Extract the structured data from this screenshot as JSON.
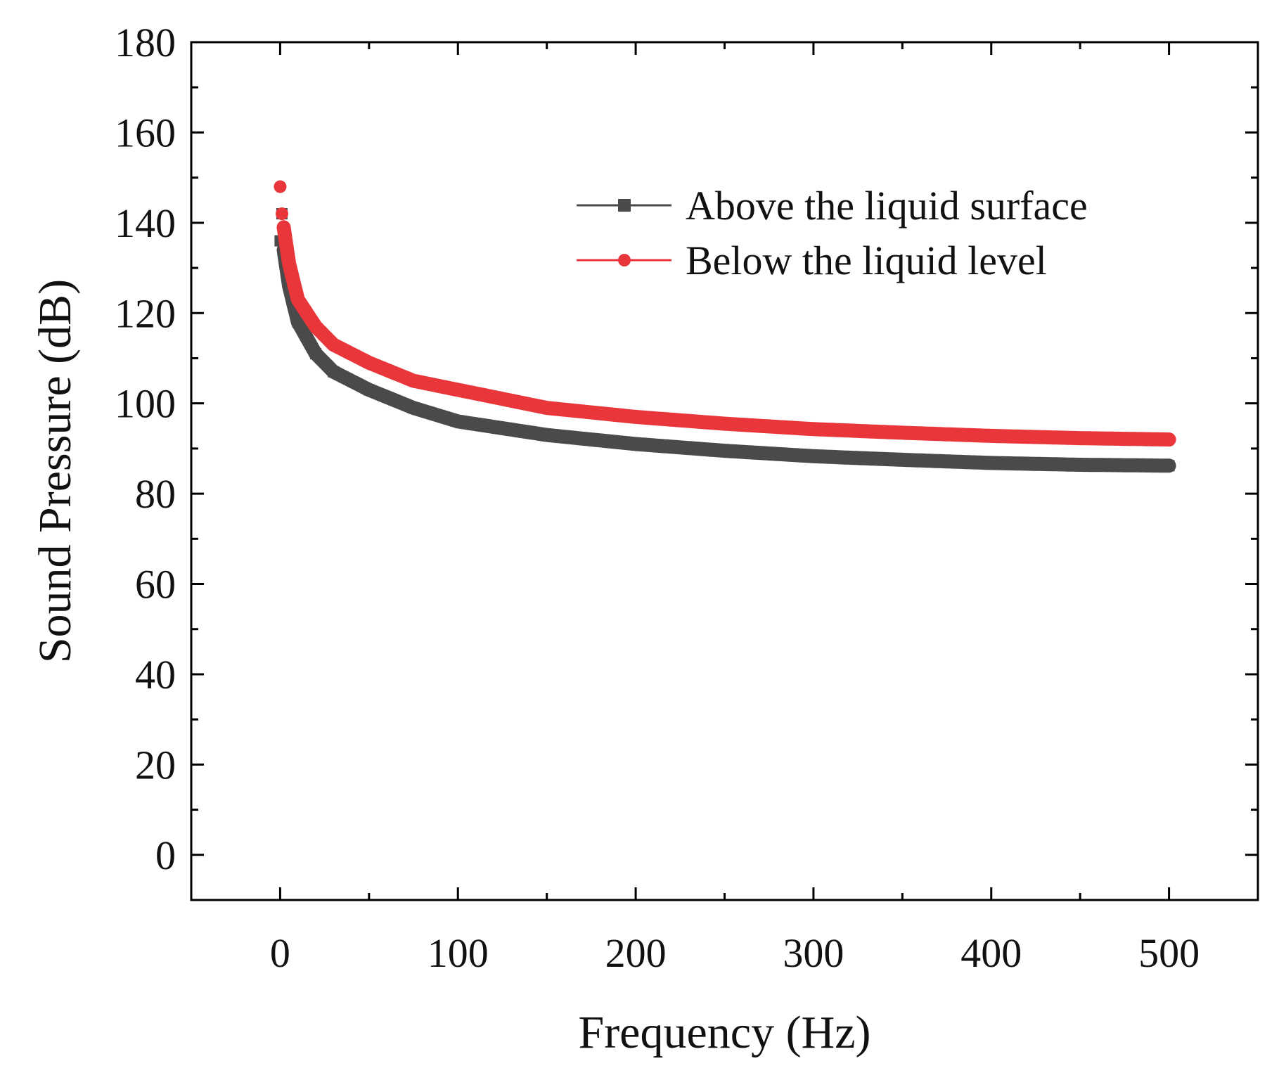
{
  "chart_data": {
    "type": "line",
    "title": "",
    "xlabel": "Frequency (Hz)",
    "ylabel": "Sound Pressure (dB)",
    "xlim": [
      -50,
      550
    ],
    "ylim": [
      -10,
      180
    ],
    "xticks": [
      0,
      100,
      200,
      300,
      400,
      500
    ],
    "yticks": [
      0,
      20,
      40,
      60,
      80,
      100,
      120,
      140,
      160,
      180
    ],
    "xtick_labels": [
      "0",
      "100",
      "200",
      "300",
      "400",
      "500"
    ],
    "ytick_labels": [
      "0",
      "20",
      "40",
      "60",
      "80",
      "100",
      "120",
      "140",
      "160",
      "180"
    ],
    "grid": false,
    "legend_position": "top-right",
    "x": [
      0,
      1,
      2,
      5,
      10,
      20,
      30,
      50,
      75,
      100,
      150,
      200,
      250,
      300,
      350,
      400,
      450,
      500
    ],
    "series": [
      {
        "name": "Above the liquid surface",
        "color": "#4a4a4a",
        "marker": "square",
        "values": [
          136,
          142,
          134,
          126,
          118,
          111,
          107,
          103,
          99,
          96,
          93,
          91,
          89.5,
          88.3,
          87.5,
          86.8,
          86.4,
          86.2
        ]
      },
      {
        "name": "Below the liquid level",
        "color": "#e8363b",
        "marker": "circle",
        "values": [
          148,
          142,
          139,
          131,
          123,
          117,
          113,
          109,
          105,
          103,
          99,
          97,
          95.5,
          94.3,
          93.5,
          92.8,
          92.3,
          92.0
        ]
      }
    ]
  }
}
